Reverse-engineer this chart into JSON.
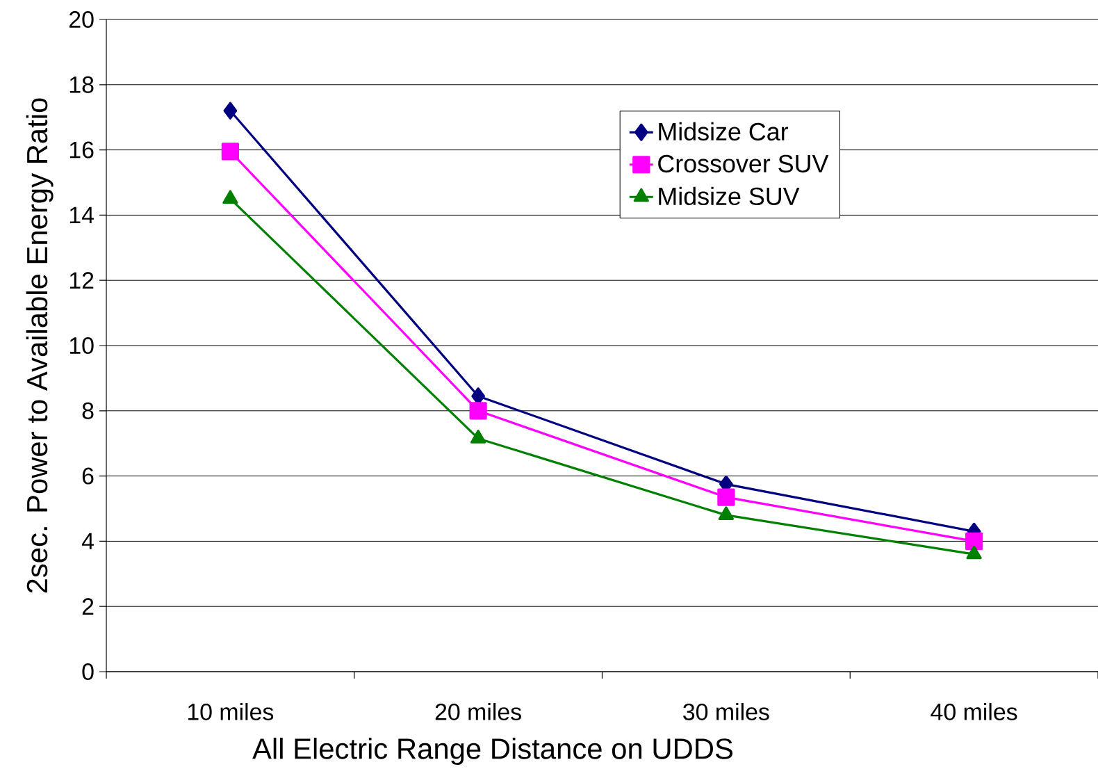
{
  "chart_data": {
    "type": "line",
    "xlabel": "All Electric Range Distance on UDDS",
    "ylabel": "2sec. Power to Available Energy Ratio",
    "categories": [
      "10 miles",
      "20 miles",
      "30 miles",
      "40 miles"
    ],
    "series": [
      {
        "name": "Midsize Car",
        "color": "#000080",
        "marker": "diamond",
        "values": [
          17.2,
          8.45,
          5.75,
          4.3
        ]
      },
      {
        "name": "Crossover SUV",
        "color": "#ff00ff",
        "marker": "square",
        "values": [
          15.95,
          8.0,
          5.35,
          4.0
        ]
      },
      {
        "name": "Midsize SUV",
        "color": "#008000",
        "marker": "triangle",
        "values": [
          14.5,
          7.15,
          4.8,
          3.6
        ]
      }
    ],
    "ylim": [
      0,
      20
    ],
    "yticks": [
      0,
      2,
      4,
      6,
      8,
      10,
      12,
      14,
      16,
      18,
      20
    ],
    "grid": "y",
    "legend": "top right",
    "line_style": "solid"
  }
}
